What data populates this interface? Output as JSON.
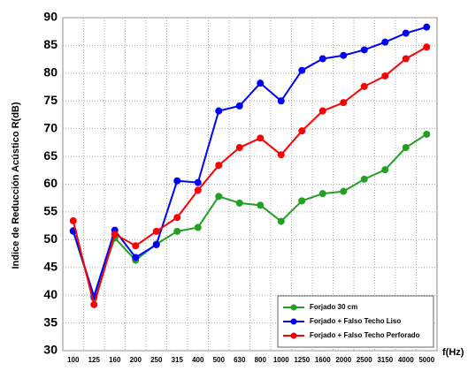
{
  "chart_data": {
    "type": "line",
    "y_label": "Indice de Reducción Acústico R(dB)",
    "x_label": "f(Hz)",
    "categories": [
      "100",
      "125",
      "160",
      "200",
      "250",
      "315",
      "400",
      "500",
      "630",
      "800",
      "1000",
      "1250",
      "1600",
      "2000",
      "2500",
      "3150",
      "4000",
      "5000"
    ],
    "series": [
      {
        "name": "Forjado 30 cm",
        "color": "#22a022",
        "values": [
          51.5,
          39.5,
          50.3,
          46.3,
          49.2,
          51.5,
          52.2,
          57.8,
          56.6,
          56.2,
          53.3,
          57,
          58.3,
          58.7,
          60.9,
          62.6,
          66.6,
          69
        ]
      },
      {
        "name": "Forjado + Falso Techo Liso",
        "color": "#0000ff",
        "values": [
          51.6,
          39.8,
          51.7,
          46.8,
          49.1,
          60.6,
          60.3,
          73.2,
          74.1,
          78.2,
          75,
          80.5,
          82.6,
          83.2,
          84.2,
          85.6,
          87.2,
          88.3
        ]
      },
      {
        "name": "Forjado + Falso Techo Perforado",
        "color": "#ff0000",
        "values": [
          53.4,
          38.3,
          51,
          48.9,
          51.5,
          54,
          58.9,
          63.4,
          66.6,
          68.3,
          65.3,
          69.6,
          73.2,
          74.7,
          77.6,
          79.5,
          82.6,
          84.7
        ]
      }
    ],
    "ylim": [
      30,
      90
    ],
    "yticks": [
      30,
      35,
      40,
      45,
      50,
      55,
      60,
      65,
      70,
      75,
      80,
      85,
      90
    ],
    "grid": true,
    "legend": "lower right"
  }
}
